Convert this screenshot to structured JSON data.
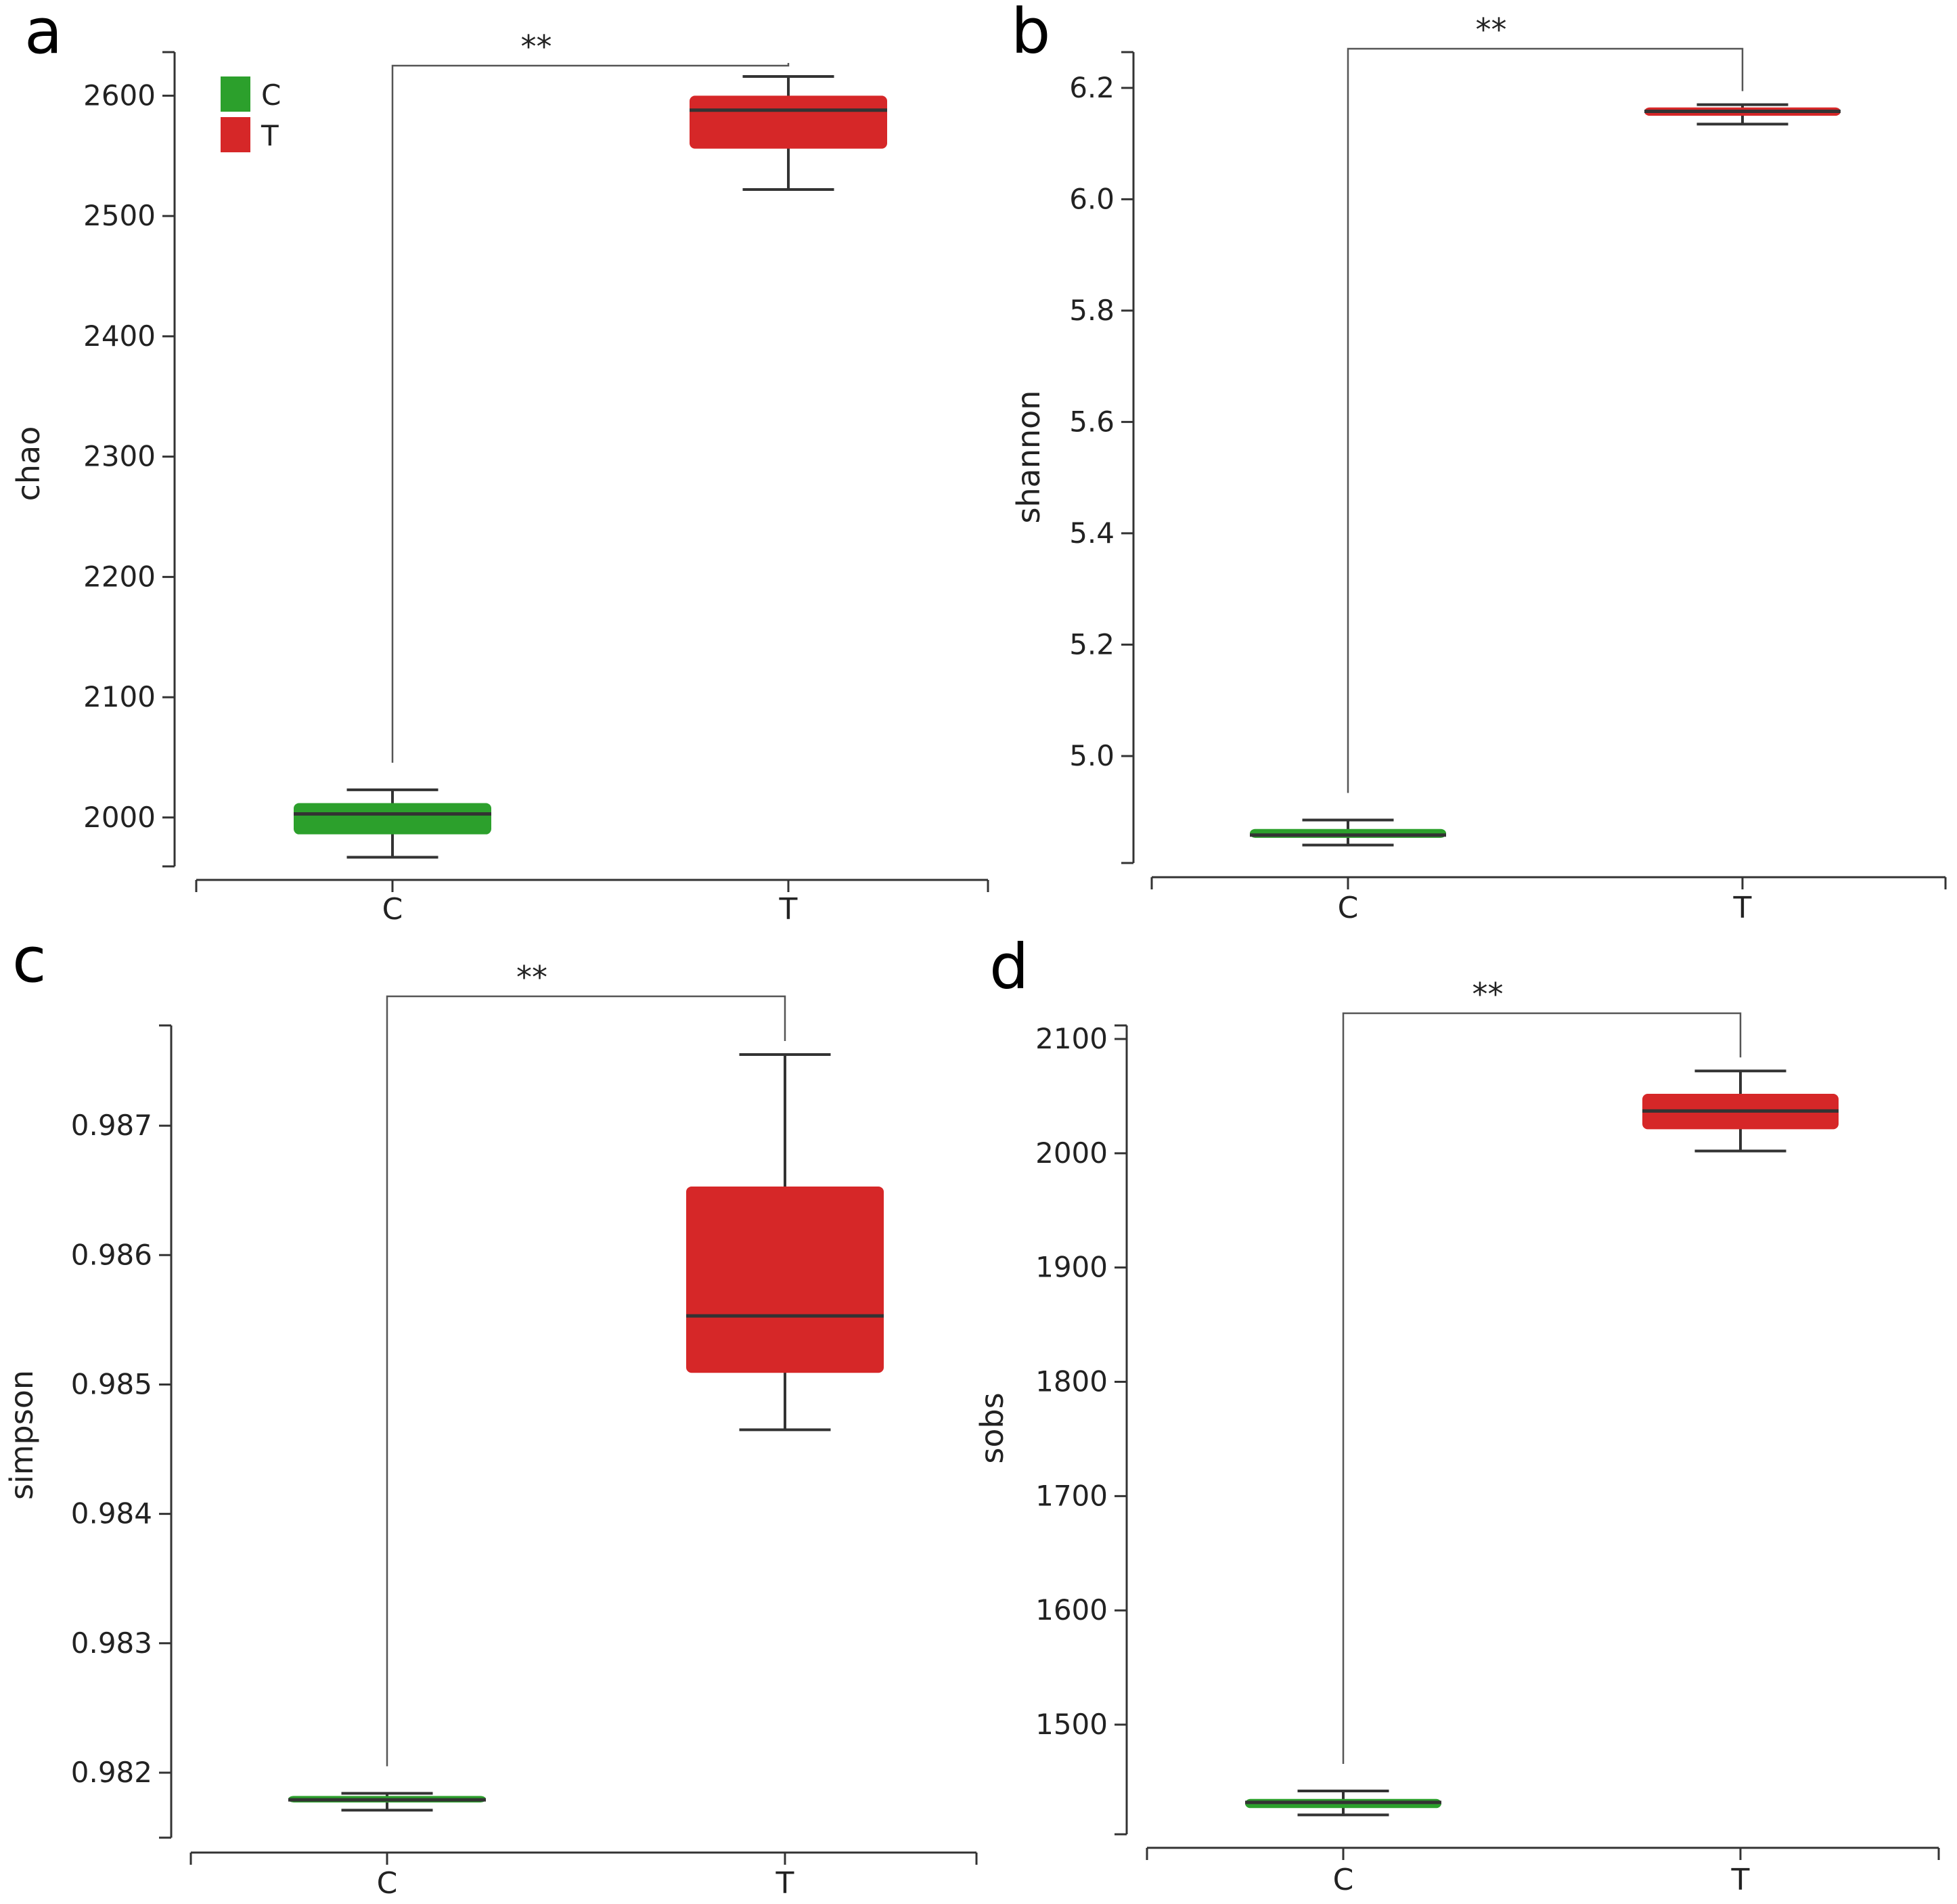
{
  "colors": {
    "C": "#2ca02c",
    "T": "#d62728",
    "axis": "#333333",
    "median": "#333333",
    "bracket": "#555555"
  },
  "legend": [
    {
      "name": "C",
      "color": "#2ca02c"
    },
    {
      "name": "T",
      "color": "#d62728"
    }
  ],
  "chart_data": [
    {
      "type": "box",
      "panel": "a",
      "ylabel": "chao",
      "categories": [
        "C",
        "T"
      ],
      "ylim": [
        1965,
        2625
      ],
      "yticks": [
        2000,
        2100,
        2200,
        2300,
        2400,
        2500,
        2600
      ],
      "ytick_labels": [
        "2000",
        "2100",
        "2200",
        "2300",
        "2400",
        "2500",
        "2600"
      ],
      "boxes": [
        {
          "name": "C",
          "min": 1967,
          "q1": 1986,
          "median": 2003,
          "q3": 2012,
          "max": 2023
        },
        {
          "name": "T",
          "min": 2522,
          "q1": 2556,
          "median": 2588,
          "q3": 2600,
          "max": 2616
        }
      ],
      "significance": {
        "label": "**",
        "y": 2650
      },
      "legend": "top-left"
    },
    {
      "type": "box",
      "panel": "b",
      "ylabel": "shannon",
      "categories": [
        "C",
        "T"
      ],
      "ylim": [
        4.82,
        6.24
      ],
      "yticks": [
        5.0,
        5.2,
        5.4,
        5.6,
        5.8,
        6.0,
        6.2
      ],
      "ytick_labels": [
        "5.0",
        "5.2",
        "5.4",
        "5.6",
        "5.8",
        "6.0",
        "6.2"
      ],
      "boxes": [
        {
          "name": "C",
          "min": 4.84,
          "q1": 4.853,
          "median": 4.858,
          "q3": 4.869,
          "max": 4.885
        },
        {
          "name": "T",
          "min": 6.135,
          "q1": 6.15,
          "median": 6.158,
          "q3": 6.165,
          "max": 6.17
        }
      ],
      "significance": {
        "label": "**",
        "y": 6.255
      }
    },
    {
      "type": "box",
      "panel": "c",
      "ylabel": "simpson",
      "categories": [
        "C",
        "T"
      ],
      "ylim": [
        0.98155,
        0.98767
      ],
      "yticks": [
        0.982,
        0.983,
        0.984,
        0.985,
        0.986,
        0.987
      ],
      "ytick_labels": [
        "0.982",
        "0.983",
        "0.984",
        "0.985",
        "0.986",
        "0.987"
      ],
      "boxes": [
        {
          "name": "C",
          "min": 0.98171,
          "q1": 0.98177,
          "median": 0.98179,
          "q3": 0.98182,
          "max": 0.98184
        },
        {
          "name": "T",
          "min": 0.98465,
          "q1": 0.98509,
          "median": 0.98553,
          "q3": 0.98653,
          "max": 0.98755
        }
      ],
      "significance": {
        "label": "**",
        "y": 0.9879
      }
    },
    {
      "type": "box",
      "panel": "d",
      "ylabel": "sobs",
      "categories": [
        "C",
        "T"
      ],
      "ylim": [
        1410,
        2100
      ],
      "yticks": [
        1500,
        1600,
        1700,
        1800,
        1900,
        2000,
        2100
      ],
      "ytick_labels": [
        "1500",
        "1600",
        "1700",
        "1800",
        "1900",
        "2000",
        "2100"
      ],
      "boxes": [
        {
          "name": "C",
          "min": 1421,
          "q1": 1427,
          "median": 1432,
          "q3": 1435,
          "max": 1442
        },
        {
          "name": "T",
          "min": 2002,
          "q1": 2021,
          "median": 2037,
          "q3": 2052,
          "max": 2072
        }
      ],
      "significance": {
        "label": "**",
        "y": 2123
      }
    }
  ]
}
